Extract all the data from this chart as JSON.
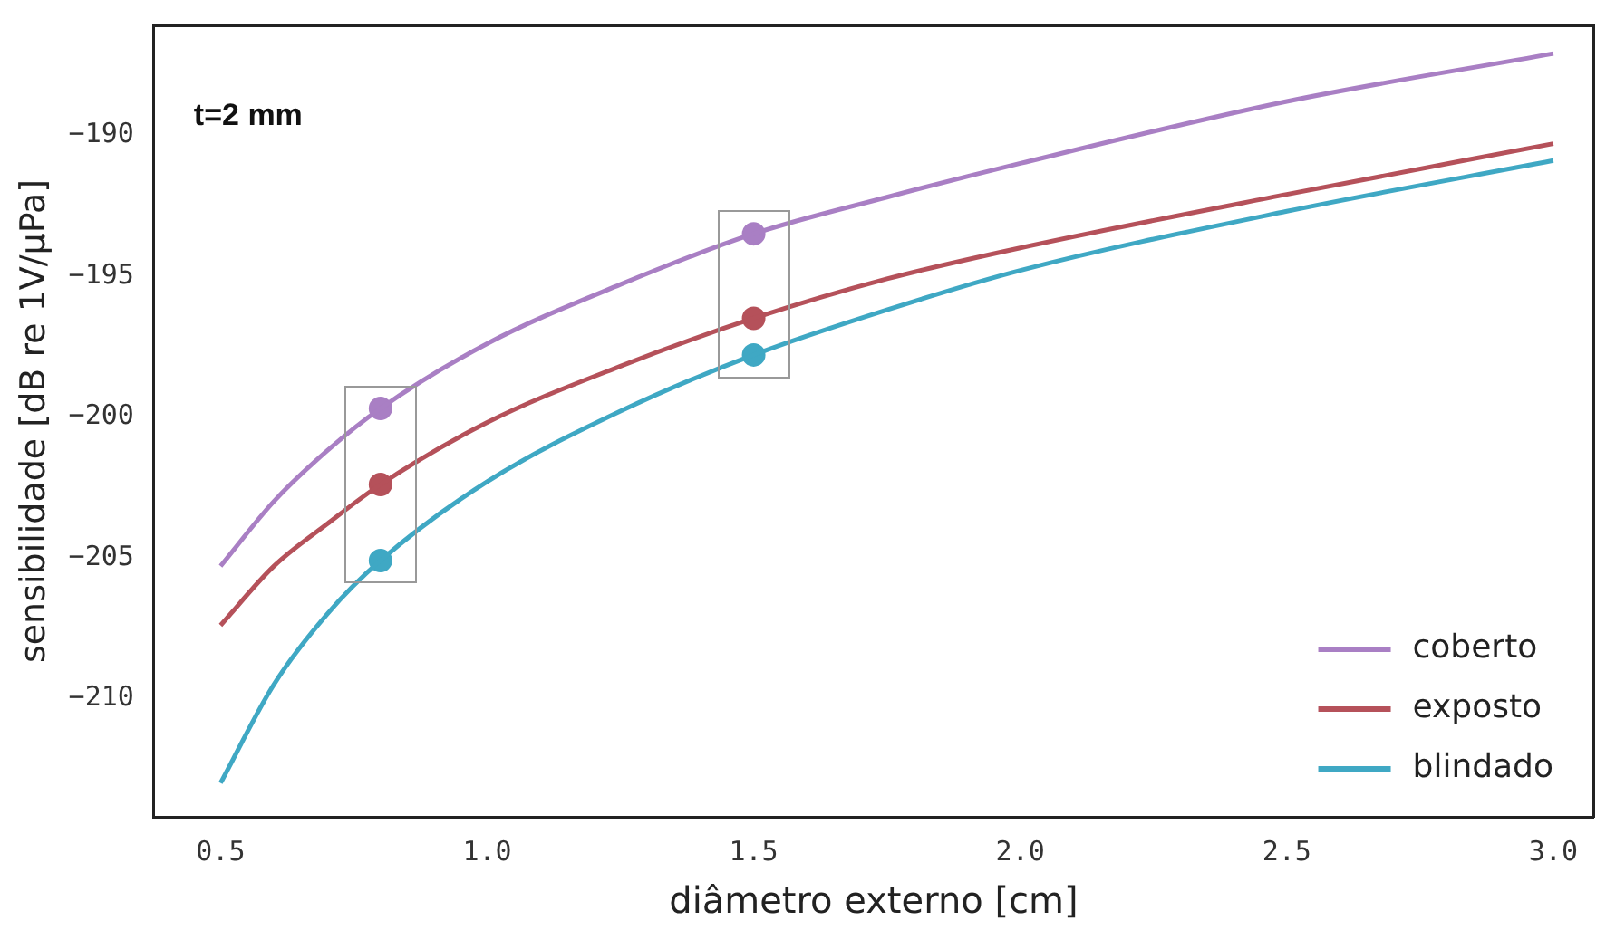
{
  "chart_data": {
    "type": "line",
    "xlabel": "diâmetro externo [cm]",
    "ylabel": "sensibilidade [dB re 1V/µPa]",
    "annotations": [
      "t=2 mm"
    ],
    "xlim": [
      0.375,
      3.075
    ],
    "ylim": [
      -214.2,
      -186.1
    ],
    "xticks": [
      {
        "value": 0.5,
        "label": "0.5"
      },
      {
        "value": 1,
        "label": "1.0"
      },
      {
        "value": 1.5,
        "label": "1.5"
      },
      {
        "value": 2,
        "label": "2.0"
      },
      {
        "value": 2.5,
        "label": "2.5"
      },
      {
        "value": 3,
        "label": "3.0"
      }
    ],
    "yticks": [
      -190,
      -195,
      -200,
      -205,
      -210
    ],
    "x": [
      0.5,
      0.6,
      0.7,
      0.8,
      1.0,
      1.25,
      1.5,
      1.75,
      2.0,
      2.5,
      3.0
    ],
    "series": [
      {
        "name": "coberto",
        "color": "#a97fc4",
        "values": [
          -205.3,
          -203.0,
          -201.2,
          -199.7,
          -197.4,
          -195.3,
          -193.5,
          -192.2,
          -191.0,
          -188.8,
          -187.1
        ]
      },
      {
        "name": "exposto",
        "color": "#b5515a",
        "values": [
          -207.4,
          -205.3,
          -203.8,
          -202.4,
          -200.2,
          -198.2,
          -196.5,
          -195.1,
          -194.0,
          -192.1,
          -190.3
        ]
      },
      {
        "name": "blindado",
        "color": "#3fa8c4",
        "values": [
          -213.0,
          -209.5,
          -207.0,
          -205.1,
          -202.3,
          -199.8,
          -197.8,
          -196.2,
          -194.8,
          -192.7,
          -190.9
        ]
      },
      {
        "type": "scatter",
        "marker": "circle",
        "color": "#a97fc4",
        "values": [
          null,
          null,
          null,
          -199.7,
          null,
          null,
          -193.5,
          null,
          null,
          null,
          null
        ]
      },
      {
        "type": "scatter",
        "marker": "circle",
        "color": "#b5515a",
        "values": [
          null,
          null,
          null,
          -202.4,
          null,
          null,
          -196.5,
          null,
          null,
          null,
          null
        ]
      },
      {
        "type": "scatter",
        "marker": "circle",
        "color": "#3fa8c4",
        "values": [
          null,
          null,
          null,
          -205.1,
          null,
          null,
          -197.8,
          null,
          null,
          null,
          null
        ]
      }
    ],
    "grid": false,
    "legend": "bottom right",
    "marker": "none",
    "line_style": "solid"
  }
}
